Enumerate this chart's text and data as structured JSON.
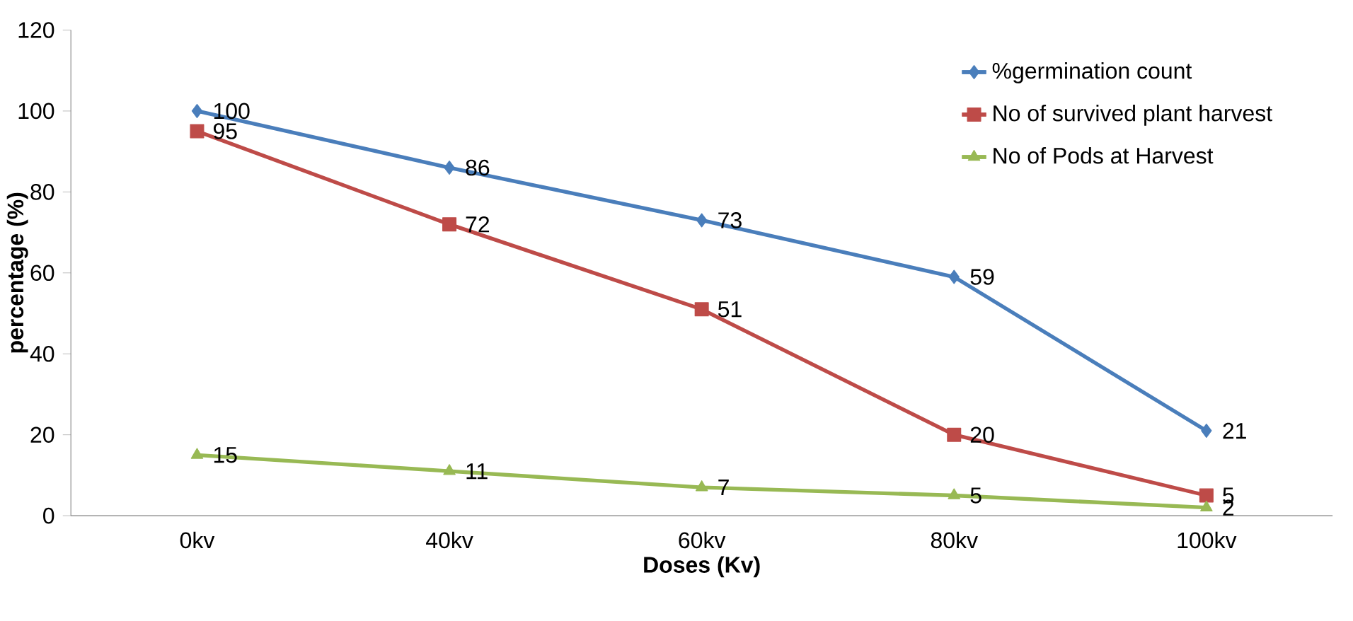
{
  "chart_data": {
    "type": "line",
    "xlabel": "Doses (Kv)",
    "ylabel": "percentage (%)",
    "categories": [
      "0kv",
      "40kv",
      "60kv",
      "80kv",
      "100kv"
    ],
    "series": [
      {
        "name": "%germination count",
        "color": "#4a7ebb",
        "marker": "diamond",
        "values": [
          100,
          86,
          73,
          59,
          21
        ]
      },
      {
        "name": "No of survived plant harvest",
        "color": "#be4b48",
        "marker": "square",
        "values": [
          95,
          72,
          51,
          20,
          5
        ]
      },
      {
        "name": "No of Pods at Harvest",
        "color": "#98b954",
        "marker": "triangle",
        "values": [
          15,
          11,
          7,
          5,
          2
        ]
      }
    ],
    "ylim": [
      0,
      120
    ],
    "yticks": [
      0,
      20,
      40,
      60,
      80,
      100,
      120
    ],
    "grid": false,
    "legend": "top right",
    "data_labels": true,
    "line_style": "solid"
  }
}
